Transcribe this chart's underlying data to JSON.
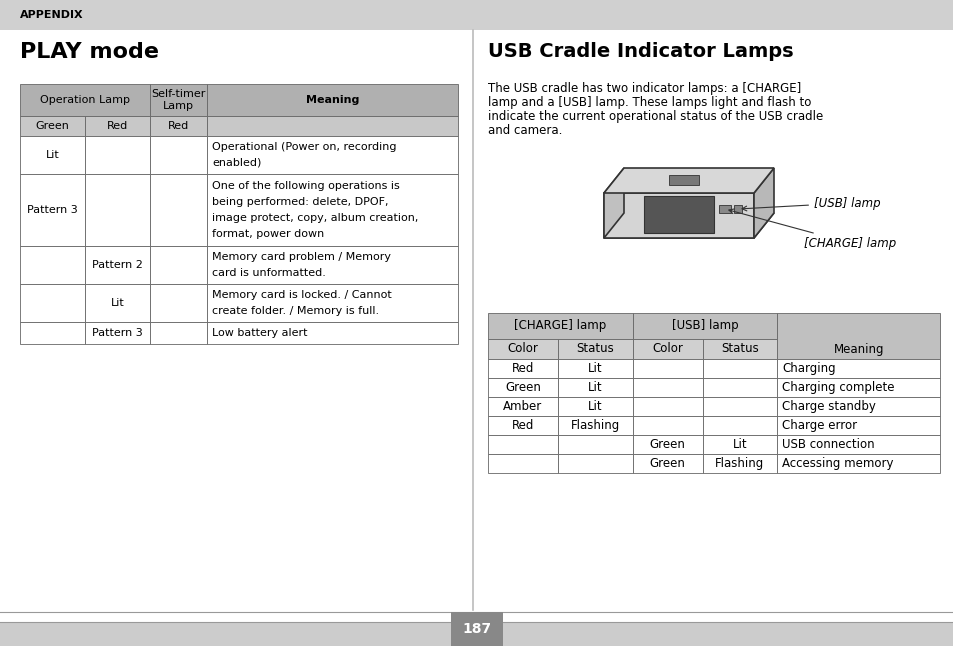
{
  "page_bg": "#ffffff",
  "header_bg": "#d0d0d0",
  "header_text": "APPENDIX",
  "left_title": "PLAY mode",
  "right_title": "USB Cradle Indicator Lamps",
  "right_paragraph": "The USB cradle has two indicator lamps: a [CHARGE]\nlamp and a [USB] lamp. These lamps light and flash to\nindicate the current operational status of the USB cradle\nand camera.",
  "play_table_header_bg": "#b0b0b0",
  "play_table_subheader_bg": "#c8c8c8",
  "play_table_rows": [
    [
      "Lit",
      "",
      "",
      "Operational (Power on, recording\nenabled)"
    ],
    [
      "Pattern 3",
      "",
      "",
      "One of the following operations is\nbeing performed: delete, DPOF,\nimage protect, copy, album creation,\nformat, power down"
    ],
    [
      "",
      "Pattern 2",
      "",
      "Memory card problem / Memory\ncard is unformatted."
    ],
    [
      "",
      "Lit",
      "",
      "Memory card is locked. / Cannot\ncreate folder. / Memory is full."
    ],
    [
      "",
      "Pattern 3",
      "",
      "Low battery alert"
    ]
  ],
  "usb_table_header_bg": "#c0c0c0",
  "usb_table_subheader_bg": "#d0d0d0",
  "usb_table_rows": [
    [
      "Red",
      "Lit",
      "",
      "",
      "Charging"
    ],
    [
      "Green",
      "Lit",
      "",
      "",
      "Charging complete"
    ],
    [
      "Amber",
      "Lit",
      "",
      "",
      "Charge standby"
    ],
    [
      "Red",
      "Flashing",
      "",
      "",
      "Charge error"
    ],
    [
      "",
      "",
      "Green",
      "Lit",
      "USB connection"
    ],
    [
      "",
      "",
      "Green",
      "Flashing",
      "Accessing memory"
    ]
  ],
  "page_number": "187",
  "page_num_bg": "#888888",
  "page_num_color": "#ffffff"
}
